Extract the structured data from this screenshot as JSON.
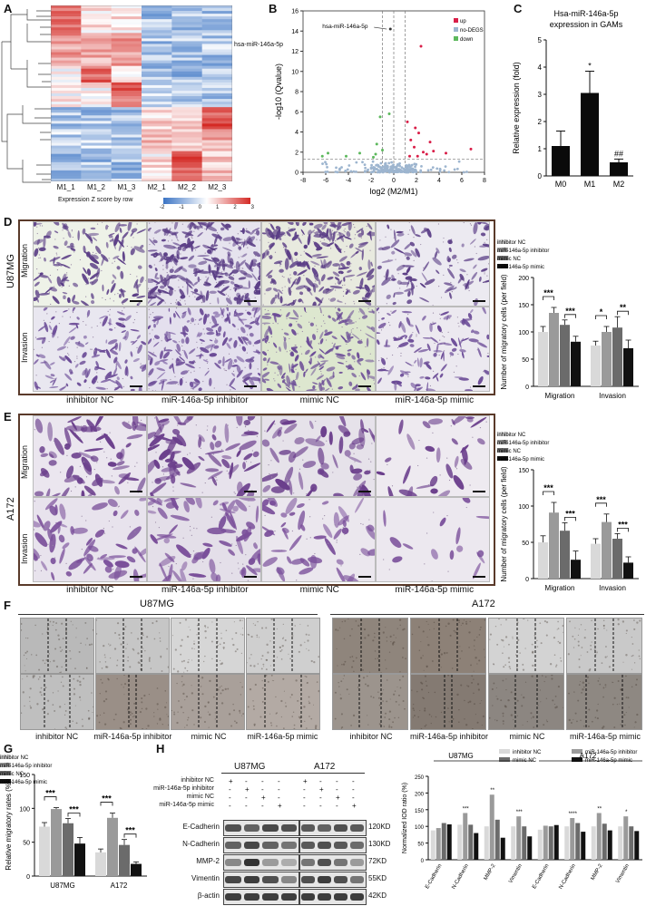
{
  "panels": {
    "A": "A",
    "B": "B",
    "C": "C",
    "D": "D",
    "E": "E",
    "F": "F",
    "G": "G",
    "H": "H"
  },
  "heatmap": {
    "columns": [
      "M1_1",
      "M1_2",
      "M1_3",
      "M2_1",
      "M2_2",
      "M2_3"
    ],
    "highlight_label": "hsa-miR-146a-5p",
    "legend_title": "Expression Z score by row",
    "legend_ticks": [
      "-2",
      "-1",
      "0",
      "1",
      "2",
      "3"
    ],
    "colors": {
      "low": "#4a7fc1",
      "mid": "#ffffff",
      "high": "#d7302a"
    }
  },
  "volcano": {
    "type": "scatter",
    "ylabel": "-log10 (Qvalue)",
    "xlabel": "log2 (M2/M1)",
    "xlim": [
      -8,
      8
    ],
    "ylim": [
      0,
      16
    ],
    "xticks": [
      "-8",
      "-6",
      "-4",
      "-2",
      "0",
      "2",
      "4",
      "6",
      "8"
    ],
    "yticks": [
      "0",
      "2",
      "4",
      "6",
      "8",
      "10",
      "12",
      "14",
      "16"
    ],
    "annotation": "hsa-miR-146a-5p",
    "legend": [
      {
        "name": "up",
        "color": "#d91e48"
      },
      {
        "name": "no-DEGS",
        "color": "#9db5cf"
      },
      {
        "name": "down",
        "color": "#5cb85c"
      }
    ],
    "up_points": [
      [
        1.2,
        5
      ],
      [
        1.5,
        3.2
      ],
      [
        1.8,
        2.5
      ],
      [
        2.2,
        3.9
      ],
      [
        2.4,
        12.5
      ],
      [
        2.6,
        2.0
      ],
      [
        2.9,
        1.8
      ],
      [
        3.2,
        3.0
      ],
      [
        3.5,
        2.1
      ],
      [
        1.4,
        1.6
      ],
      [
        1.9,
        4.4
      ],
      [
        2.1,
        1.6
      ],
      [
        4.6,
        1.9
      ],
      [
        6.8,
        2.3
      ]
    ],
    "down_points": [
      [
        -1.2,
        5.5
      ],
      [
        -0.4,
        5.8
      ],
      [
        -1.5,
        2.8
      ],
      [
        -1.0,
        2.2
      ],
      [
        -1.6,
        1.8
      ],
      [
        -3.0,
        1.9
      ],
      [
        -5.8,
        1.9
      ],
      [
        -6.3,
        1.6
      ],
      [
        -1.8,
        1.5
      ],
      [
        -4.2,
        1.6
      ]
    ],
    "highlight_point": [
      -0.3,
      14.2
    ]
  },
  "expr_chart": {
    "type": "bar",
    "title_line1": "Hsa-miR-146a-5p",
    "title_line2": "expression in GAMs",
    "ylabel": "Relative expression (fold)",
    "categories": [
      "M0",
      "M1",
      "M2"
    ],
    "values": [
      1.1,
      3.05,
      0.5
    ],
    "errors": [
      0.55,
      0.8,
      0.12
    ],
    "ylim": [
      0,
      5
    ],
    "yticks": [
      "0",
      "1",
      "2",
      "3",
      "4",
      "5"
    ],
    "annotations": [
      "",
      "*",
      "##"
    ]
  },
  "legend_conditions": [
    "inhibitor NC",
    "miR-146a-5p inhibitor",
    "mimic NC",
    "miR-146a-5p mimic"
  ],
  "cond_colors": [
    "#d9d9d9",
    "#9a9a9a",
    "#6b6b6b",
    "#111111"
  ],
  "row_labels": {
    "migration": "Migration",
    "invasion": "Invasion"
  },
  "cell_lines": {
    "u87": "U87MG",
    "a172": "A172"
  },
  "chart_d": {
    "type": "bar",
    "ylabel": "Number of migratory cells (per field)",
    "categories": [
      "Migration",
      "Invasion"
    ],
    "ylim": [
      0,
      200
    ],
    "yticks": [
      "0",
      "50",
      "100",
      "150",
      "200"
    ],
    "series": [
      {
        "name": "inhibitor NC",
        "values": [
          100,
          75
        ],
        "errors": [
          10,
          8
        ]
      },
      {
        "name": "miR-146a-5p inhibitor",
        "values": [
          135,
          100
        ],
        "errors": [
          10,
          10
        ]
      },
      {
        "name": "mimic NC",
        "values": [
          113,
          108
        ],
        "errors": [
          9,
          20
        ]
      },
      {
        "name": "miR-146a-5p mimic",
        "values": [
          82,
          70
        ],
        "errors": [
          10,
          15
        ]
      }
    ],
    "sig": [
      "***",
      "***",
      "*",
      "**"
    ]
  },
  "chart_e": {
    "type": "bar",
    "ylabel": "Number of migratory cells (per field)",
    "categories": [
      "Migration",
      "Invasion"
    ],
    "ylim": [
      0,
      150
    ],
    "yticks": [
      "0",
      "50",
      "100",
      "150"
    ],
    "series": [
      {
        "name": "inhibitor NC",
        "values": [
          50,
          48
        ],
        "errors": [
          9,
          7
        ]
      },
      {
        "name": "miR-146a-5p inhibitor",
        "values": [
          91,
          78
        ],
        "errors": [
          14,
          11
        ]
      },
      {
        "name": "mimic NC",
        "values": [
          66,
          55
        ],
        "errors": [
          11,
          7
        ]
      },
      {
        "name": "miR-146a-5p mimic",
        "values": [
          26,
          22
        ],
        "errors": [
          12,
          8
        ]
      }
    ],
    "sig": [
      "***",
      "***",
      "***",
      "***"
    ]
  },
  "chart_g": {
    "type": "bar",
    "ylabel": "Relative migratory rates (%)",
    "categories": [
      "U87MG",
      "A172"
    ],
    "ylim": [
      0,
      150
    ],
    "yticks": [
      "0",
      "50",
      "100",
      "150"
    ],
    "series": [
      {
        "name": "inhibitor NC",
        "values": [
          73,
          35
        ],
        "errors": [
          6,
          5
        ]
      },
      {
        "name": "miR-146a-5p inhibitor",
        "values": [
          99,
          86
        ],
        "errors": [
          2,
          7
        ]
      },
      {
        "name": "mimic NC",
        "values": [
          78,
          46
        ],
        "errors": [
          7,
          8
        ]
      },
      {
        "name": "miR-146a-5p mimic",
        "values": [
          48,
          18
        ],
        "errors": [
          9,
          3
        ]
      }
    ],
    "sig": [
      "***",
      "***",
      "***",
      "***"
    ]
  },
  "western": {
    "u87_label": "U87MG",
    "a172_label": "A172",
    "treatments": [
      "inhibitor NC",
      "miR-146a-5p inhibitor",
      "mimic NC",
      "miR-146a-5p mimic"
    ],
    "signs": [
      [
        "+",
        "-",
        "-",
        "-"
      ],
      [
        "-",
        "+",
        "-",
        "-"
      ],
      [
        "-",
        "-",
        "+",
        "-"
      ],
      [
        "-",
        "-",
        "-",
        "+"
      ]
    ],
    "proteins": [
      "E-Cadherin",
      "N-Cadherin",
      "MMP-2",
      "Vimentin",
      "β-actin"
    ],
    "sizes": [
      "120KD",
      "130KD",
      "72KD",
      "55KD",
      "42KD"
    ]
  },
  "chart_h": {
    "type": "bar",
    "ylabel": "Normalized IOD ratio (%)",
    "group_labels": [
      "U87MG",
      "A172"
    ],
    "categories": [
      "E-Cadherin",
      "N-Cadherin",
      "MMP-2",
      "Vimentin",
      "E-Cadherin",
      "N-Cadherin",
      "MMP-2",
      "Vimentin"
    ],
    "ylim": [
      0,
      250
    ],
    "yticks": [
      "0",
      "50",
      "100",
      "150",
      "200",
      "250"
    ],
    "series": [
      {
        "name": "inhibitor NC",
        "values": [
          88,
          105,
          100,
          100,
          90,
          100,
          100,
          100
        ]
      },
      {
        "name": "miR-146a-5p inhibitor",
        "values": [
          95,
          140,
          195,
          130,
          102,
          125,
          140,
          130
        ]
      },
      {
        "name": "mimic NC",
        "values": [
          110,
          105,
          120,
          100,
          100,
          110,
          108,
          100
        ]
      },
      {
        "name": "miR-146a-5p mimic",
        "values": [
          106,
          80,
          66,
          70,
          104,
          84,
          88,
          86
        ]
      }
    ],
    "sig": [
      "",
      "***",
      "**",
      "***",
      "",
      "****",
      "**",
      "*"
    ]
  }
}
